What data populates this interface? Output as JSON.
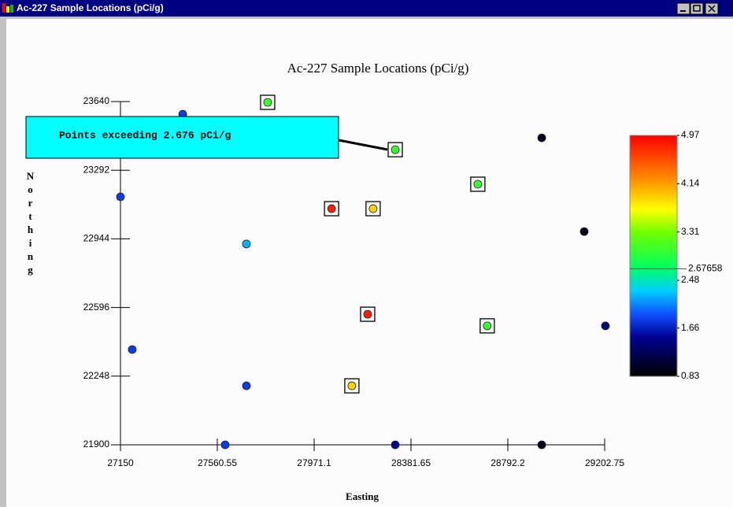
{
  "window_title": "Ac-227 Sample Locations (pCi/g)",
  "chart_data": {
    "type": "scatter",
    "title": "Ac-227 Sample Locations (pCi/g)",
    "xlabel": "Easting",
    "ylabel": "Northing",
    "annotation": "Points exceeding 2.676 pCi/g",
    "x": [
      27414,
      27774,
      28315,
      28936,
      27150,
      28665,
      28045,
      28221,
      29116,
      27684,
      28198,
      28705,
      29206,
      27200,
      27684,
      28131,
      27594,
      28315,
      28936
    ],
    "y": [
      23576,
      23636,
      23396,
      23456,
      23157,
      23221,
      23097,
      23097,
      22981,
      22918,
      22562,
      22503,
      22503,
      22383,
      22199,
      22199,
      21900,
      21900,
      21900
    ],
    "values": [
      1.8,
      3.0,
      3.0,
      0.9,
      1.8,
      3.0,
      4.8,
      3.9,
      0.9,
      2.2,
      4.8,
      3.0,
      1.4,
      1.8,
      1.8,
      3.9,
      1.8,
      1.5,
      0.9
    ],
    "xlim": [
      27150,
      29202.75
    ],
    "ylim": [
      21900,
      23640
    ],
    "xticks": [
      27150,
      27560.55,
      27971.1,
      28381.65,
      28792.2,
      29202.75
    ],
    "yticks": [
      21900,
      22248,
      22596,
      22944,
      23292,
      23640
    ],
    "colorbar": {
      "lim": [
        0.83,
        4.97
      ],
      "ticks": [
        4.97,
        4.14,
        3.31,
        2.48,
        1.66,
        0.83
      ],
      "threshold": 2.67658,
      "stops": [
        [
          0.83,
          "#000000"
        ],
        [
          1.5,
          "#000090"
        ],
        [
          1.9,
          "#1050ff"
        ],
        [
          2.3,
          "#00d0ff"
        ],
        [
          2.7,
          "#00ff60"
        ],
        [
          3.3,
          "#70ff00"
        ],
        [
          3.7,
          "#ffff00"
        ],
        [
          4.2,
          "#ff9000"
        ],
        [
          4.97,
          "#ff0000"
        ]
      ]
    },
    "highlight_above_threshold": true
  }
}
